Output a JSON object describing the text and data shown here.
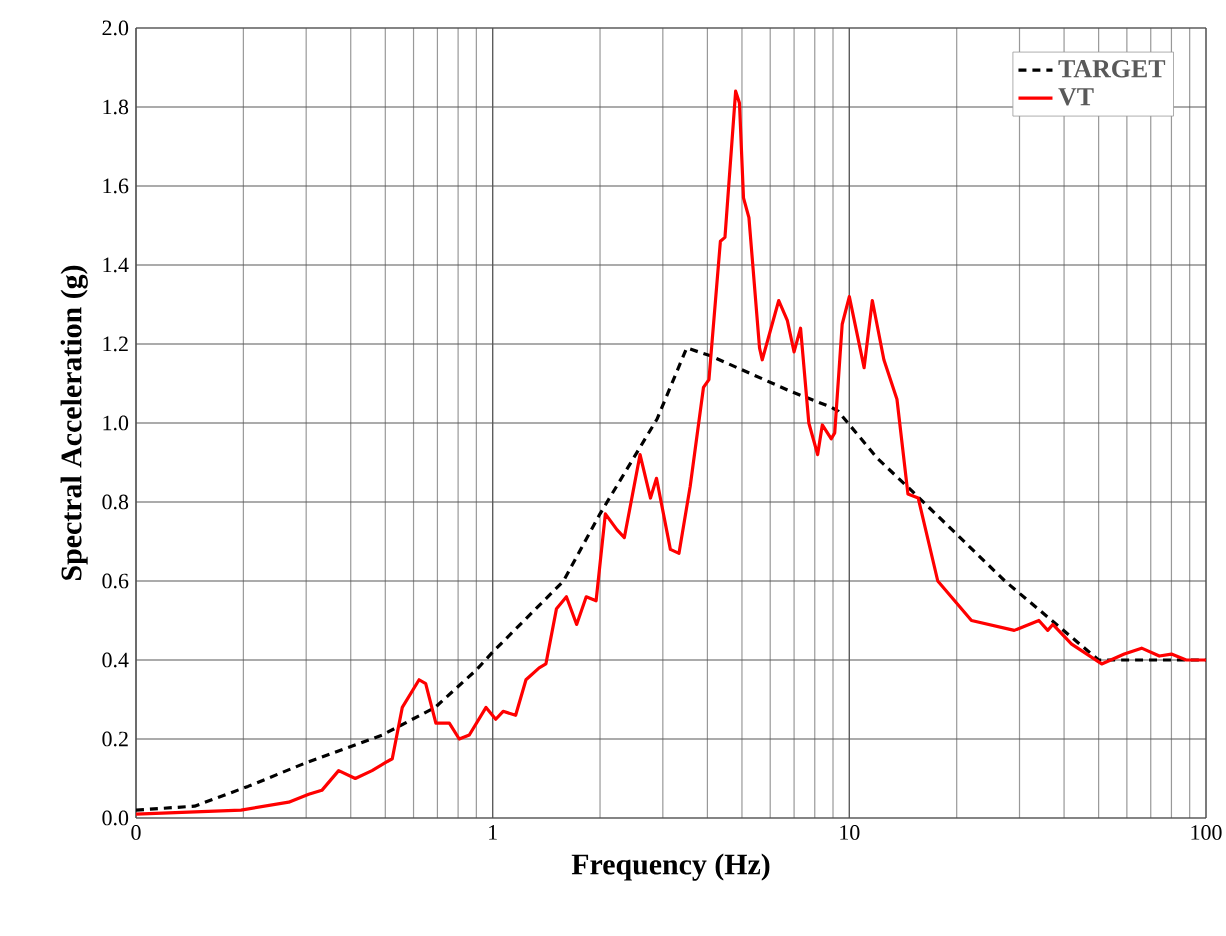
{
  "chart_data": {
    "type": "line",
    "xlabel": "Frequency (Hz)",
    "ylabel": "Spectral Acceleration (g)",
    "log": "x",
    "grid": true,
    "legend": "top right",
    "xlim": [
      0.1,
      100
    ],
    "xticks": [
      {
        "value": 0.1,
        "label": "0"
      },
      1,
      10,
      100
    ],
    "ylim": [
      0,
      2
    ],
    "yticks": [
      {
        "value": 0,
        "label": "0.0"
      },
      {
        "value": 0.2,
        "label": "0.2"
      },
      {
        "value": 0.4,
        "label": "0.4"
      },
      {
        "value": 0.6,
        "label": "0.6"
      },
      {
        "value": 0.8,
        "label": "0.8"
      },
      {
        "value": 1.0,
        "label": "1.0"
      },
      {
        "value": 1.2,
        "label": "1.2"
      },
      {
        "value": 1.4,
        "label": "1.4"
      },
      {
        "value": 1.6,
        "label": "1.6"
      },
      {
        "value": 1.8,
        "label": "1.8"
      },
      {
        "value": 2.0,
        "label": "2.0"
      }
    ],
    "series": [
      {
        "name": "TARGET",
        "color": "#000000",
        "line_style": "dashed",
        "x": [
          0.1,
          0.146,
          0.206,
          0.3,
          0.49,
          0.69,
          0.9,
          1.0,
          1.58,
          2.0,
          2.89,
          3.5,
          4.08,
          6.85,
          8.9,
          9.3,
          12.0,
          14.9,
          27.3,
          50,
          100
        ],
        "values": [
          0.02,
          0.03,
          0.08,
          0.14,
          0.21,
          0.28,
          0.375,
          0.42,
          0.6,
          0.77,
          1.01,
          1.19,
          1.17,
          1.08,
          1.04,
          1.03,
          0.91,
          0.83,
          0.6,
          0.4,
          0.4
        ]
      },
      {
        "name": "VT",
        "color": "#ff0000",
        "line_style": "solid",
        "x": [
          0.1,
          0.197,
          0.268,
          0.305,
          0.332,
          0.37,
          0.412,
          0.459,
          0.5,
          0.523,
          0.558,
          0.622,
          0.649,
          0.693,
          0.756,
          0.806,
          0.86,
          0.958,
          1.02,
          1.07,
          1.16,
          1.24,
          1.35,
          1.41,
          1.51,
          1.61,
          1.72,
          1.83,
          1.95,
          2.07,
          2.23,
          2.34,
          2.59,
          2.77,
          2.88,
          3.15,
          3.33,
          3.58,
          3.9,
          4.04,
          4.35,
          4.48,
          4.8,
          4.92,
          5.05,
          5.23,
          5.6,
          5.7,
          6.34,
          6.7,
          7.0,
          7.3,
          7.7,
          8.15,
          8.4,
          8.9,
          9.1,
          9.55,
          10.0,
          11.0,
          11.6,
          12.5,
          13.6,
          14.6,
          15.6,
          17.7,
          22.0,
          29,
          34,
          36,
          37.2,
          42,
          51,
          59,
          66,
          74,
          80,
          88,
          100
        ],
        "values": [
          0.01,
          0.02,
          0.04,
          0.06,
          0.07,
          0.12,
          0.1,
          0.12,
          0.14,
          0.15,
          0.28,
          0.35,
          0.34,
          0.24,
          0.24,
          0.2,
          0.21,
          0.28,
          0.25,
          0.27,
          0.26,
          0.35,
          0.38,
          0.39,
          0.53,
          0.56,
          0.49,
          0.56,
          0.55,
          0.77,
          0.73,
          0.71,
          0.92,
          0.81,
          0.86,
          0.68,
          0.67,
          0.84,
          1.09,
          1.11,
          1.46,
          1.47,
          1.84,
          1.81,
          1.57,
          1.52,
          1.19,
          1.16,
          1.31,
          1.26,
          1.18,
          1.24,
          1.0,
          0.92,
          0.995,
          0.96,
          0.975,
          1.25,
          1.32,
          1.14,
          1.31,
          1.16,
          1.06,
          0.82,
          0.81,
          0.6,
          0.5,
          0.475,
          0.5,
          0.475,
          0.49,
          0.44,
          0.39,
          0.415,
          0.43,
          0.41,
          0.415,
          0.4,
          0.4
        ]
      }
    ]
  }
}
